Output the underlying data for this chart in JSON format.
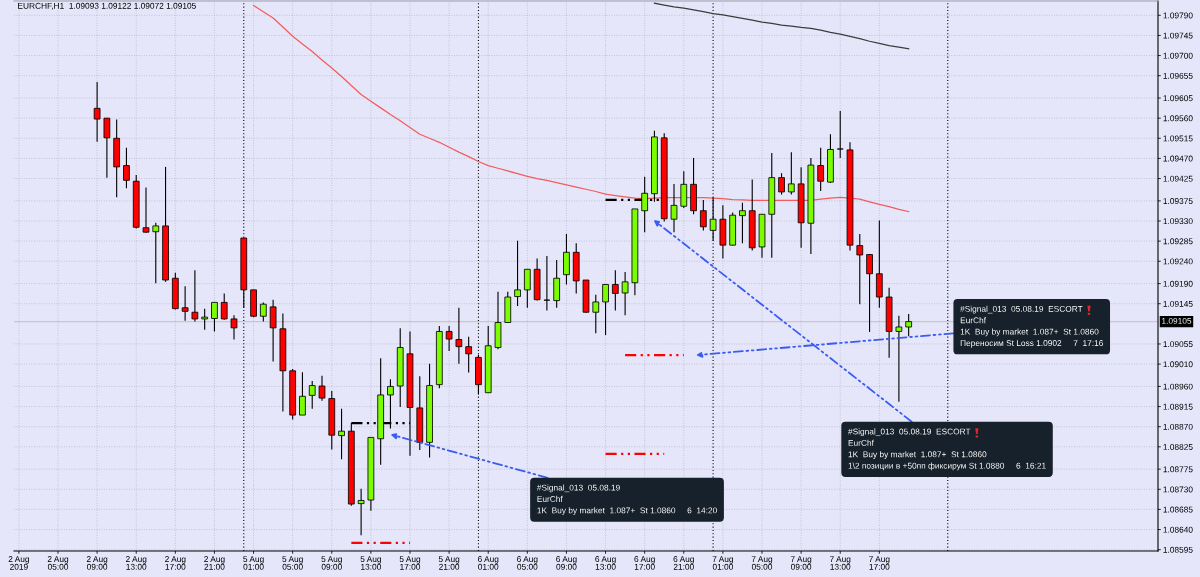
{
  "chart_data": {
    "type": "candlestick",
    "title": "EURCHF,H1  1.09093 1.09122 1.09072 1.09105",
    "categories": [
      "2 Aug 2019",
      null,
      null,
      null,
      "2 Aug 05:00",
      null,
      null,
      null,
      "2 Aug 09:00",
      null,
      null,
      null,
      "2 Aug 13:00",
      null,
      null,
      null,
      "2 Aug 17:00",
      null,
      null,
      null,
      "2 Aug 21:00",
      null,
      null,
      null,
      "5 Aug 01:00",
      null,
      null,
      null,
      "5 Aug 05:00",
      null,
      null,
      null,
      "5 Aug 09:00",
      null,
      null,
      null,
      "5 Aug 13:00",
      null,
      null,
      null,
      "5 Aug 17:00",
      null,
      null,
      null,
      "5 Aug 21:00",
      null,
      null,
      null,
      "6 Aug 01:00",
      null,
      null,
      null,
      "6 Aug 05:00",
      null,
      null,
      null,
      "6 Aug 09:00",
      null,
      null,
      null,
      "6 Aug 13:00",
      null,
      null,
      null,
      "6 Aug 17:00",
      null,
      null,
      null,
      "6 Aug 21:00",
      null,
      null,
      null,
      "7 Aug 01:00",
      null,
      null,
      null,
      "7 Aug 05:00",
      null,
      null,
      null,
      "7 Aug 09:00",
      null,
      null,
      null,
      "7 Aug 13:00",
      null,
      null,
      null,
      "7 Aug 17:00",
      null,
      null,
      null,
      null,
      null,
      null,
      null,
      null,
      null,
      null,
      null,
      null,
      null,
      null,
      null,
      null,
      null,
      null,
      null,
      null,
      null,
      null,
      null,
      null,
      null,
      null,
      null,
      null
    ],
    "ohlc": [
      null,
      null,
      null,
      null,
      null,
      null,
      null,
      null,
      [
        1.09582,
        1.09641,
        1.09507,
        1.09558
      ],
      [
        1.0956,
        1.0956,
        1.09427,
        1.09516
      ],
      [
        1.09515,
        1.09557,
        1.09383,
        1.09451
      ],
      [
        1.09454,
        1.09494,
        1.09403,
        1.09421
      ],
      [
        1.09419,
        1.09433,
        1.09313,
        1.09316
      ],
      [
        1.09315,
        1.09405,
        1.09304,
        1.09305
      ],
      [
        1.09306,
        1.09326,
        1.09191,
        1.09319
      ],
      [
        1.09319,
        1.09451,
        1.09194,
        1.09198
      ],
      [
        1.09202,
        1.09214,
        1.09132,
        1.09134
      ],
      [
        1.09136,
        1.09184,
        1.09107,
        1.09128
      ],
      [
        1.09126,
        1.0922,
        1.09105,
        1.09111
      ],
      [
        1.09111,
        1.09134,
        1.09087,
        1.09115
      ],
      [
        1.09112,
        1.09148,
        1.09083,
        1.09148
      ],
      [
        1.09148,
        1.09168,
        1.09109,
        1.09111
      ],
      [
        1.09111,
        1.09119,
        1.09065,
        1.09091
      ],
      [
        1.09292,
        1.09292,
        1.09136,
        1.09176
      ],
      [
        1.09176,
        1.09176,
        1.09115,
        1.09117
      ],
      [
        1.09117,
        1.09148,
        1.09105,
        1.09144
      ],
      [
        1.09138,
        1.09154,
        1.09016,
        1.09091
      ],
      [
        1.09089,
        1.09123,
        1.08904,
        1.08995
      ],
      [
        1.08995,
        1.08999,
        1.08886,
        1.08896
      ],
      [
        1.08896,
        1.08992,
        1.08896,
        1.08938
      ],
      [
        1.0894,
        1.08972,
        1.0891,
        1.08962
      ],
      [
        1.08961,
        1.08984,
        1.08928,
        1.08934
      ],
      [
        1.08933,
        1.0895,
        1.08819,
        1.08851
      ],
      [
        1.0885,
        1.0891,
        1.08797,
        1.0886
      ],
      [
        1.0886,
        1.08878,
        1.08693,
        1.08697
      ],
      [
        1.08698,
        1.08731,
        1.08627,
        1.08705
      ],
      [
        1.08706,
        1.08846,
        1.08682,
        1.08846
      ],
      [
        1.08843,
        1.09023,
        1.08785,
        1.08941
      ],
      [
        1.08941,
        1.08976,
        1.08866,
        1.0896
      ],
      [
        1.08961,
        1.0909,
        1.08914,
        1.09047
      ],
      [
        1.09033,
        1.09083,
        1.08805,
        1.08913
      ],
      [
        1.08912,
        1.08983,
        1.08818,
        1.08835
      ],
      [
        1.08835,
        1.09011,
        1.08801,
        1.08962
      ],
      [
        1.08964,
        1.09095,
        1.08956,
        1.09083
      ],
      [
        1.09083,
        1.09095,
        1.09039,
        1.09066
      ],
      [
        1.09065,
        1.09136,
        1.09011,
        1.09049
      ],
      [
        1.09049,
        1.09071,
        1.08991,
        1.09033
      ],
      [
        1.09025,
        1.09031,
        1.08942,
        1.08964
      ],
      [
        1.08946,
        1.09095,
        1.08946,
        1.09051
      ],
      [
        1.09047,
        1.09172,
        1.09043,
        1.09103
      ],
      [
        1.09103,
        1.09172,
        1.09103,
        1.0916
      ],
      [
        1.09161,
        1.09286,
        1.0914,
        1.09176
      ],
      [
        1.09176,
        1.09222,
        1.09136,
        1.09222
      ],
      [
        1.09222,
        1.09246,
        1.09152,
        1.09154
      ],
      [
        1.09153,
        1.09252,
        1.0913,
        1.09153
      ],
      [
        1.09152,
        1.09243,
        1.09136,
        1.09202
      ],
      [
        1.0921,
        1.09301,
        1.09188,
        1.0926
      ],
      [
        1.0926,
        1.0928,
        1.09168,
        1.09196
      ],
      [
        1.09198,
        1.09198,
        1.09125,
        1.09126
      ],
      [
        1.09126,
        1.09165,
        1.09079,
        1.09149
      ],
      [
        1.09149,
        1.09188,
        1.09075,
        1.09188
      ],
      [
        1.09188,
        1.0922,
        1.0913,
        1.09168
      ],
      [
        1.09169,
        1.09216,
        1.09119,
        1.09194
      ],
      [
        1.09192,
        1.09357,
        1.09164,
        1.09357
      ],
      [
        1.09353,
        1.09429,
        1.09305,
        1.09392
      ],
      [
        1.09391,
        1.09532,
        1.09373,
        1.09518
      ],
      [
        1.09516,
        1.09526,
        1.09329,
        1.09335
      ],
      [
        1.09334,
        1.09413,
        1.09305,
        1.09365
      ],
      [
        1.09363,
        1.09441,
        1.09359,
        1.09412
      ],
      [
        1.09412,
        1.09471,
        1.09345,
        1.09353
      ],
      [
        1.09353,
        1.09377,
        1.09309,
        1.09317
      ],
      [
        1.09309,
        1.09383,
        1.09286,
        1.09334
      ],
      [
        1.09334,
        1.09365,
        1.09246,
        1.09276
      ],
      [
        1.09276,
        1.09349,
        1.09275,
        1.09343
      ],
      [
        1.09342,
        1.09371,
        1.0928,
        1.09353
      ],
      [
        1.09353,
        1.09423,
        1.09264,
        1.0927
      ],
      [
        1.09272,
        1.09345,
        1.09248,
        1.09345
      ],
      [
        1.09345,
        1.09482,
        1.09248,
        1.09427
      ],
      [
        1.09427,
        1.09437,
        1.09389,
        1.09395
      ],
      [
        1.09395,
        1.09484,
        1.09389,
        1.09413
      ],
      [
        1.09413,
        1.0945,
        1.0927,
        1.09326
      ],
      [
        1.09325,
        1.09471,
        1.09256,
        1.09455
      ],
      [
        1.09454,
        1.09494,
        1.09397,
        1.09419
      ],
      [
        1.09417,
        1.09524,
        1.09415,
        1.0949
      ],
      [
        1.09491,
        1.09576,
        1.09471,
        1.09491
      ],
      [
        1.09489,
        1.09506,
        1.09264,
        1.09276
      ],
      [
        1.09275,
        1.09301,
        1.09144,
        1.09254
      ],
      [
        1.09255,
        1.09256,
        1.09082,
        1.09212
      ],
      [
        1.09212,
        1.09331,
        1.09136,
        1.0916
      ],
      [
        1.0916,
        1.09181,
        1.09024,
        1.09083
      ],
      [
        1.09083,
        1.09118,
        1.08926,
        1.09093
      ],
      [
        1.09093,
        1.09122,
        1.09072,
        1.09105
      ],
      null,
      null,
      null,
      null,
      null,
      null,
      null,
      null,
      null,
      null,
      null,
      null,
      null,
      null,
      null,
      null,
      null,
      null,
      null,
      null,
      null,
      null,
      null,
      null,
      null
    ],
    "colors": [
      null,
      null,
      null,
      null,
      null,
      null,
      null,
      null,
      "#ff0000",
      "#ff0000",
      "#ff0000",
      "#ff0000",
      "#ff0000",
      "#ff0000",
      "#7cfc00",
      "#ff0000",
      "#ff0000",
      "#ff0000",
      "#ff0000",
      "#7cfc00",
      "#7cfc00",
      "#ff0000",
      "#ff0000",
      "#ff0000",
      "#ff0000",
      "#7cfc00",
      "#ff0000",
      "#ff0000",
      "#ff0000",
      "#7cfc00",
      "#7cfc00",
      "#ff0000",
      "#ff0000",
      "#7cfc00",
      "#ff0000",
      "#7cfc00",
      "#7cfc00",
      "#7cfc00",
      "#7cfc00",
      "#7cfc00",
      "#ff0000",
      "#ff0000",
      "#7cfc00",
      "#7cfc00",
      "#ff0000",
      "#ff0000",
      "#ff0000",
      "#ff0000",
      "#7cfc00",
      "#7cfc00",
      "#7cfc00",
      "#7cfc00",
      "#7cfc00",
      "#ff0000",
      "#000000",
      "#7cfc00",
      "#7cfc00",
      "#ff0000",
      "#ff0000",
      "#7cfc00",
      "#7cfc00",
      "#ff0000",
      "#7cfc00",
      "#7cfc00",
      "#7cfc00",
      "#7cfc00",
      "#ff0000",
      "#7cfc00",
      "#7cfc00",
      "#ff0000",
      "#ff0000",
      "#7cfc00",
      "#ff0000",
      "#7cfc00",
      "#7cfc00",
      "#ff0000",
      "#7cfc00",
      "#7cfc00",
      "#ff0000",
      "#7cfc00",
      "#ff0000",
      "#7cfc00",
      "#ff0000",
      "#7cfc00",
      "#000000",
      "#ff0000",
      "#ff0000",
      "#ff0000",
      "#ff0000",
      "#ff0000",
      "#7cfc00",
      "#7cfc00",
      null,
      null,
      null,
      null,
      null,
      null,
      null,
      null,
      null,
      null,
      null,
      null,
      null,
      null,
      null,
      null,
      null,
      null,
      null,
      null,
      null,
      null,
      null,
      null,
      null
    ],
    "series": [
      {
        "type": "line",
        "color": "#f25c5c",
        "values": [
          null,
          null,
          null,
          null,
          null,
          null,
          null,
          null,
          null,
          null,
          null,
          null,
          null,
          null,
          null,
          null,
          null,
          null,
          null,
          null,
          null,
          null,
          null,
          null,
          1.09812,
          1.09798,
          1.09784,
          1.09764,
          1.09743,
          1.09726,
          1.09709,
          1.0969,
          1.09672,
          1.09653,
          1.09633,
          1.09613,
          1.09598,
          1.09583,
          1.09568,
          1.09554,
          1.09539,
          1.09524,
          1.09515,
          1.09506,
          1.09495,
          1.09484,
          1.09474,
          1.09463,
          1.09454,
          1.09448,
          1.09442,
          1.09436,
          1.0943,
          1.09425,
          1.09421,
          1.09416,
          1.09411,
          1.09406,
          1.09401,
          1.09396,
          1.0939,
          1.09387,
          1.09384,
          1.09381,
          1.0938,
          1.09381,
          1.09382,
          1.09382,
          1.09382,
          1.09382,
          1.09382,
          1.09381,
          1.0938,
          1.09378,
          1.09377,
          1.09376,
          1.09376,
          1.09376,
          1.09376,
          1.09376,
          1.09376,
          1.09376,
          1.09379,
          1.09381,
          1.09383,
          1.09381,
          1.09379,
          1.09373,
          1.09367,
          1.09362,
          1.09356,
          1.09351,
          null,
          null,
          null,
          null,
          null,
          null,
          null,
          null,
          null,
          null,
          null,
          null,
          null,
          null,
          null,
          null,
          null,
          null,
          null,
          null,
          null,
          null,
          null,
          null,
          null
        ]
      },
      {
        "type": "line",
        "color": "#3c3c3c",
        "values": [
          null,
          null,
          null,
          null,
          null,
          null,
          null,
          null,
          null,
          null,
          null,
          null,
          null,
          null,
          null,
          null,
          null,
          null,
          null,
          null,
          null,
          null,
          null,
          null,
          null,
          null,
          null,
          null,
          null,
          null,
          null,
          null,
          null,
          null,
          null,
          null,
          null,
          null,
          null,
          null,
          null,
          null,
          null,
          null,
          null,
          null,
          null,
          null,
          null,
          null,
          null,
          null,
          null,
          null,
          null,
          null,
          null,
          null,
          null,
          null,
          null,
          null,
          null,
          null,
          null,
          1.09817,
          1.09813,
          1.09809,
          1.09806,
          1.09802,
          1.09798,
          1.09794,
          1.09791,
          1.09787,
          1.09783,
          1.09779,
          1.09775,
          1.09772,
          1.09768,
          1.09766,
          1.09763,
          1.09761,
          1.09757,
          1.09752,
          1.09748,
          1.09743,
          1.09738,
          1.09732,
          1.09727,
          1.09722,
          1.09719,
          1.09715,
          null,
          null,
          null,
          null,
          null,
          null,
          null,
          null,
          null,
          null,
          null,
          null,
          null,
          null,
          null,
          null,
          null,
          null,
          null,
          null,
          null,
          null,
          null,
          null,
          null
        ]
      },
      {
        "type": "line",
        "color": "#000000",
        "line_style": "dashed",
        "values": [
          null,
          null,
          null,
          null,
          null,
          null,
          null,
          null,
          null,
          null,
          null,
          null,
          null,
          null,
          null,
          null,
          null,
          null,
          null,
          null,
          null,
          null,
          null,
          null,
          null,
          null,
          null,
          null,
          null,
          null,
          null,
          null,
          null,
          null,
          1.08878,
          1.08878,
          1.08878,
          1.08878,
          1.08878,
          1.08878,
          1.08878,
          null,
          null,
          null,
          null,
          null,
          null,
          null,
          null,
          null,
          null,
          null,
          null,
          null,
          null,
          null,
          null,
          null,
          null,
          null,
          null,
          null,
          null,
          null,
          null,
          null,
          null,
          null,
          null,
          null,
          null,
          null,
          null,
          null,
          null,
          null,
          null,
          null,
          null,
          null,
          null,
          null,
          null,
          null,
          null,
          null,
          null,
          null,
          null,
          null,
          null,
          null,
          null,
          null,
          null,
          null,
          null,
          null,
          null,
          null,
          null,
          null,
          null,
          null,
          null,
          null,
          null,
          null,
          null,
          null,
          null,
          null,
          null,
          null,
          null,
          null,
          null
        ]
      },
      {
        "type": "line",
        "color": "#ff0000",
        "line_style": "dashed",
        "values": [
          null,
          null,
          null,
          null,
          null,
          null,
          null,
          null,
          null,
          null,
          null,
          null,
          null,
          null,
          null,
          null,
          null,
          null,
          null,
          null,
          null,
          null,
          null,
          null,
          null,
          null,
          null,
          null,
          null,
          null,
          null,
          null,
          null,
          null,
          1.0861,
          1.0861,
          1.0861,
          1.0861,
          1.0861,
          1.0861,
          1.0861,
          null,
          null,
          null,
          null,
          null,
          null,
          null,
          null,
          null,
          null,
          null,
          null,
          null,
          null,
          null,
          null,
          null,
          null,
          null,
          null,
          null,
          null,
          null,
          null,
          null,
          null,
          null,
          null,
          null,
          null,
          null,
          null,
          null,
          null,
          null,
          null,
          null,
          null,
          null,
          null,
          null,
          null,
          null,
          null,
          null,
          null,
          null,
          null,
          null,
          null,
          null,
          null,
          null,
          null,
          null,
          null,
          null,
          null,
          null,
          null,
          null,
          null,
          null,
          null,
          null,
          null,
          null,
          null,
          null,
          null,
          null,
          null,
          null,
          null,
          null,
          null
        ]
      },
      {
        "type": "line",
        "color": "#000000",
        "line_style": "dashed",
        "values": [
          null,
          null,
          null,
          null,
          null,
          null,
          null,
          null,
          null,
          null,
          null,
          null,
          null,
          null,
          null,
          null,
          null,
          null,
          null,
          null,
          null,
          null,
          null,
          null,
          null,
          null,
          null,
          null,
          null,
          null,
          null,
          null,
          null,
          null,
          null,
          null,
          null,
          null,
          null,
          null,
          null,
          null,
          null,
          null,
          null,
          null,
          null,
          null,
          null,
          null,
          null,
          null,
          null,
          null,
          null,
          null,
          null,
          null,
          null,
          null,
          1.09377,
          1.09377,
          1.09377,
          1.09377,
          1.09377,
          1.09377,
          1.09377,
          null,
          null,
          null,
          null,
          null,
          null,
          null,
          null,
          null,
          null,
          null,
          null,
          null,
          null,
          null,
          null,
          null,
          null,
          null,
          null,
          null,
          null,
          null,
          null,
          null,
          null,
          null,
          null,
          null,
          null,
          null,
          null,
          null,
          null,
          null,
          null,
          null,
          null,
          null,
          null,
          null,
          null,
          null,
          null,
          null,
          null,
          null,
          null,
          null,
          null
        ]
      },
      {
        "type": "line",
        "color": "#ff0000",
        "line_style": "dashed",
        "values": [
          null,
          null,
          null,
          null,
          null,
          null,
          null,
          null,
          null,
          null,
          null,
          null,
          null,
          null,
          null,
          null,
          null,
          null,
          null,
          null,
          null,
          null,
          null,
          null,
          null,
          null,
          null,
          null,
          null,
          null,
          null,
          null,
          null,
          null,
          null,
          null,
          null,
          null,
          null,
          null,
          null,
          null,
          null,
          null,
          null,
          null,
          null,
          null,
          null,
          null,
          null,
          null,
          null,
          null,
          null,
          null,
          null,
          null,
          null,
          null,
          null,
          null,
          1.0903,
          1.0903,
          1.0903,
          1.0903,
          1.0903,
          1.0903,
          1.0903,
          null,
          null,
          null,
          null,
          null,
          null,
          null,
          null,
          null,
          null,
          null,
          null,
          null,
          null,
          null,
          null,
          null,
          null,
          null,
          null,
          null,
          null,
          null,
          null,
          null,
          null,
          null,
          null,
          null,
          null,
          null,
          null,
          null,
          null,
          null,
          null,
          null,
          null,
          null,
          null,
          null,
          null,
          null,
          null,
          null,
          null,
          null,
          null
        ]
      },
      {
        "type": "line",
        "color": "#ff0000",
        "line_style": "dashed",
        "values": [
          null,
          null,
          null,
          null,
          null,
          null,
          null,
          null,
          null,
          null,
          null,
          null,
          null,
          null,
          null,
          null,
          null,
          null,
          null,
          null,
          null,
          null,
          null,
          null,
          null,
          null,
          null,
          null,
          null,
          null,
          null,
          null,
          null,
          null,
          null,
          null,
          null,
          null,
          null,
          null,
          null,
          null,
          null,
          null,
          null,
          null,
          null,
          null,
          null,
          null,
          null,
          null,
          null,
          null,
          null,
          null,
          null,
          null,
          null,
          null,
          1.08809,
          1.08809,
          1.08809,
          1.08809,
          1.08809,
          1.08809,
          1.08809,
          null,
          null,
          null,
          null,
          null,
          null,
          null,
          null,
          null,
          null,
          null,
          null,
          null,
          null,
          null,
          null,
          null,
          null,
          null,
          null,
          null,
          null,
          null,
          null,
          null,
          null,
          null,
          null,
          null,
          null,
          null,
          null,
          null,
          null,
          null,
          null,
          null,
          null,
          null,
          null,
          null,
          null,
          null,
          null,
          null,
          null,
          null,
          null,
          null,
          null
        ]
      }
    ],
    "ylim": [
      1.08592,
      1.09822
    ],
    "yticks": [
      {
        "value": 1.0979,
        "label": "1.09790"
      },
      1.09745,
      {
        "value": 1.097,
        "label": "1.09700"
      },
      1.09655,
      1.09605,
      {
        "value": 1.0956,
        "label": "1.09560"
      },
      1.09515,
      {
        "value": 1.0947,
        "label": "1.09470"
      },
      1.09425,
      1.09375,
      {
        "value": 1.0933,
        "label": "1.09330"
      },
      1.09285,
      {
        "value": 1.0924,
        "label": "1.09240"
      },
      {
        "value": 1.0919,
        "label": "1.09190"
      },
      1.09145,
      1.09055,
      {
        "value": 1.0901,
        "label": "1.09010"
      },
      {
        "value": 1.0896,
        "label": "1.08960"
      },
      1.08915,
      {
        "value": 1.0887,
        "label": "1.08870"
      },
      1.08825,
      1.08775,
      {
        "value": 1.0873,
        "label": "1.08730"
      },
      1.08685,
      {
        "value": 1.0864,
        "label": "1.08640"
      },
      1.08595
    ],
    "grid": true,
    "ref_lines": [
      {
        "axis": "y",
        "value": 1.09105,
        "label": "1.09105",
        "color": "#c8c8c8"
      }
    ],
    "annotations": [
      "#Signal_013  05.08.19\nEurChf\n1K  Buy by market  1.087+  St 1.0860     6  14:20",
      "#Signal_013  05.08.19  ESCORT\nEurChf\n1K  Buy by market  1.087+  St 1.0860\n1\\2 позиции в +50пп фиксирум St 1.0880     6  16:21",
      "#Signal_013  05.08.19  ESCORT\nEurChf\n1K  Buy by market  1.087+  St 1.0860\nПереносим St Loss 1.0902     7  17:16"
    ]
  }
}
